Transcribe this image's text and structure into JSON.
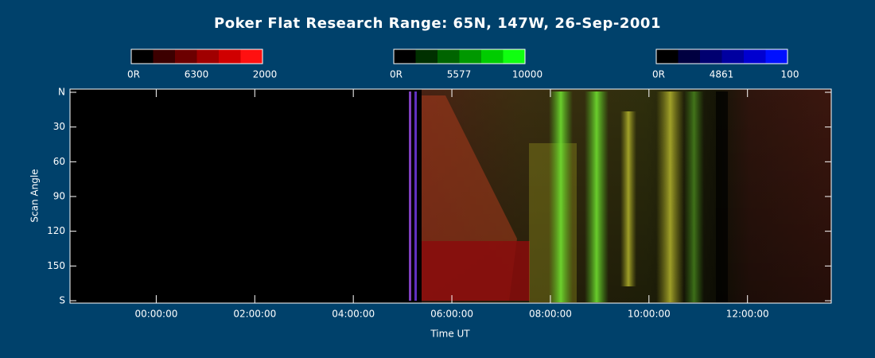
{
  "chart_data": {
    "type": "keogram",
    "title": "Poker Flat Research Range: 65N, 147W, 26-Sep-2001",
    "x_label": "Time UT",
    "y_label": "Scan Angle",
    "xlim": [
      -1.75,
      13.7
    ],
    "xticks": [
      {
        "value": 0,
        "label": "00:00:00"
      },
      {
        "value": 2,
        "label": "02:00:00"
      },
      {
        "value": 4,
        "label": "04:00:00"
      },
      {
        "value": 6,
        "label": "06:00:00"
      },
      {
        "value": 8,
        "label": "08:00:00"
      },
      {
        "value": 10,
        "label": "10:00:00"
      },
      {
        "value": 12,
        "label": "12:00:00"
      }
    ],
    "ylim": [
      0,
      180
    ],
    "yticks": [
      {
        "value": 0,
        "label": "N"
      },
      30,
      60,
      90,
      120,
      150,
      {
        "value": 180,
        "label": "S"
      }
    ],
    "colorbars": [
      {
        "name": "6300",
        "min_label": "0R",
        "max": 2000,
        "colors": [
          "#000000",
          "#3c0000",
          "#6c0000",
          "#a00000",
          "#d00000",
          "#ff1010"
        ]
      },
      {
        "name": "5577",
        "min_label": "0R",
        "max": 10000,
        "colors": [
          "#000000",
          "#003000",
          "#006400",
          "#009800",
          "#00cc00",
          "#10ff10"
        ]
      },
      {
        "name": "4861",
        "min_label": "0R",
        "max": 100,
        "colors": [
          "#000000",
          "#000040",
          "#000070",
          "#0000a0",
          "#0000d0",
          "#0010ff"
        ]
      }
    ]
  }
}
